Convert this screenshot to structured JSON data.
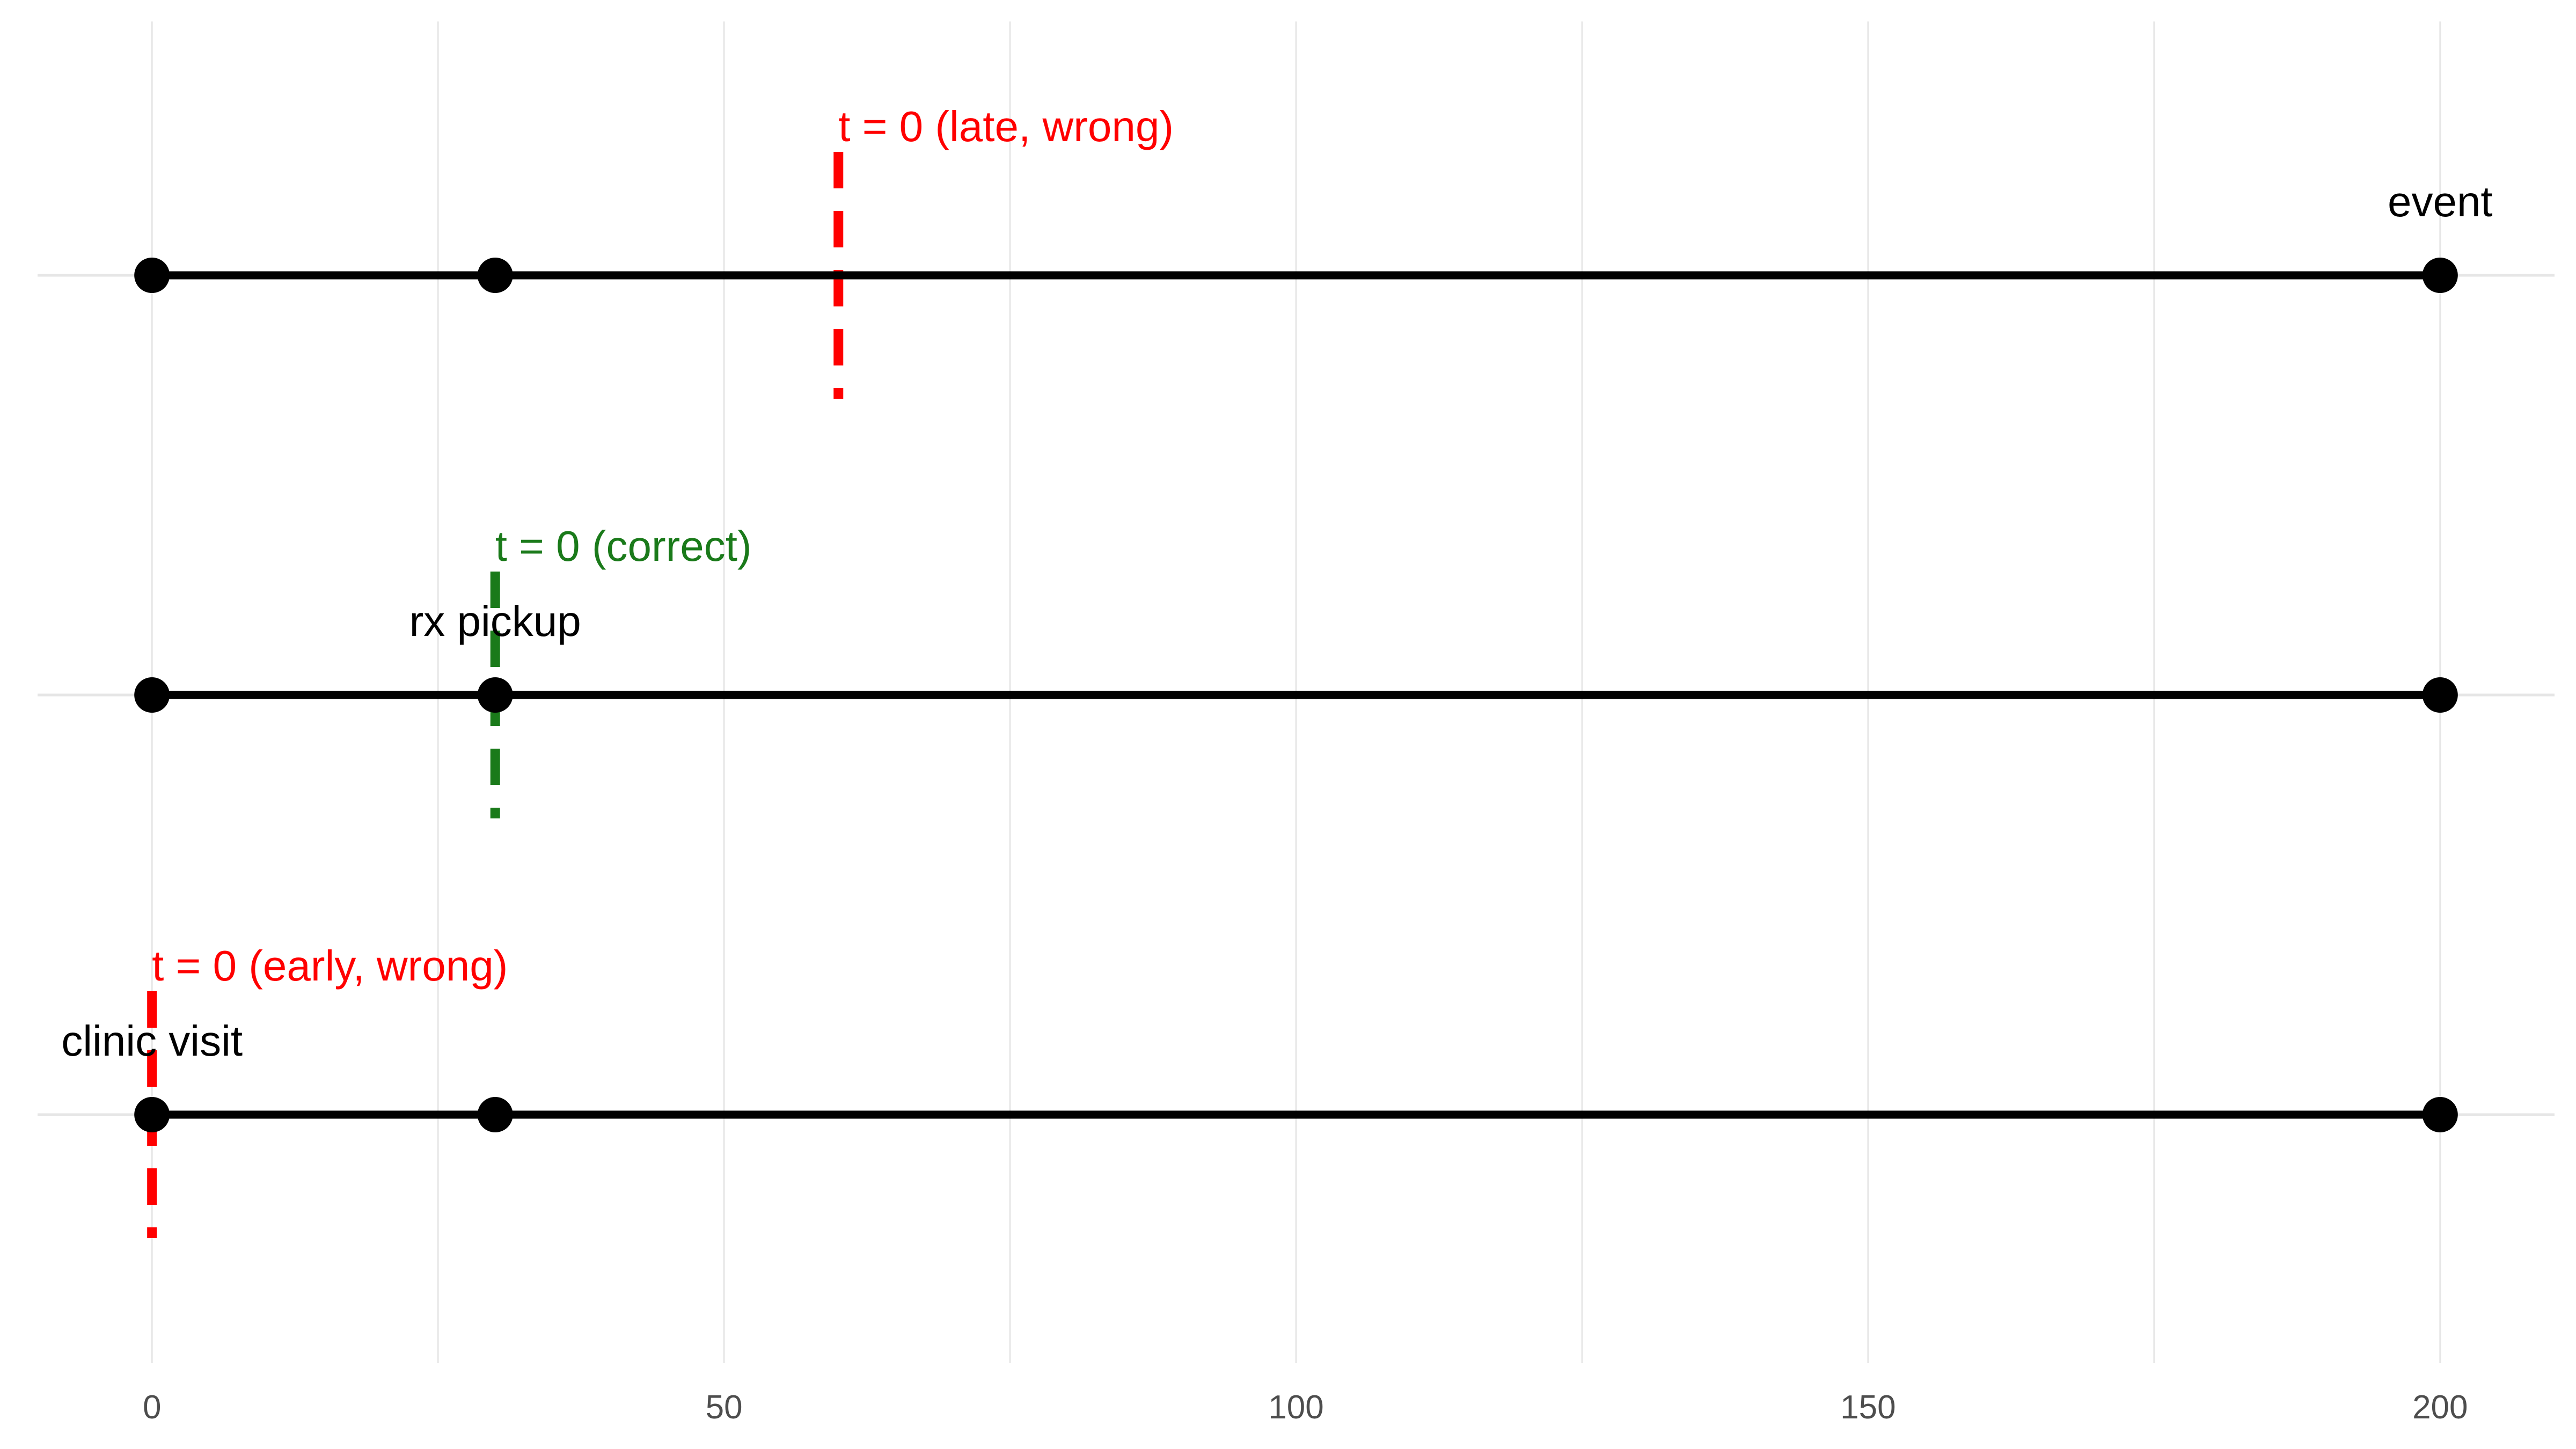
{
  "chart_data": {
    "type": "line",
    "title": "",
    "xlabel": "",
    "ylabel": "",
    "xlim": [
      -10,
      210
    ],
    "x_ticks": [
      0,
      50,
      100,
      150,
      200
    ],
    "x_tick_labels": [
      "0",
      "50",
      "100",
      "150",
      "200"
    ],
    "x_minor_grid": [
      25,
      75,
      125,
      175
    ],
    "grid": true,
    "legend": "none",
    "colors": {
      "timeline": "#000000",
      "wrong": "#ff0000",
      "correct": "#1a7a1a",
      "grid": "#e6e6e6",
      "tick_text": "#4d4d4d"
    },
    "timelines": [
      {
        "row": 1,
        "start": 0,
        "end": 200,
        "points": [
          0,
          30,
          200
        ],
        "t0": {
          "x": 60,
          "label": "t = 0 (late, wrong)",
          "status": "wrong"
        },
        "event_label": {
          "x": 200,
          "text": "event"
        }
      },
      {
        "row": 2,
        "start": 0,
        "end": 200,
        "points": [
          0,
          30,
          200
        ],
        "t0": {
          "x": 30,
          "label": "t = 0 (correct)",
          "status": "correct"
        },
        "event_label": {
          "x": 30,
          "text": "rx pickup"
        }
      },
      {
        "row": 3,
        "start": 0,
        "end": 200,
        "points": [
          0,
          30,
          200
        ],
        "t0": {
          "x": 0,
          "label": "t = 0 (early, wrong)",
          "status": "wrong"
        },
        "event_label": {
          "x": 0,
          "text": "clinic visit"
        }
      }
    ]
  }
}
